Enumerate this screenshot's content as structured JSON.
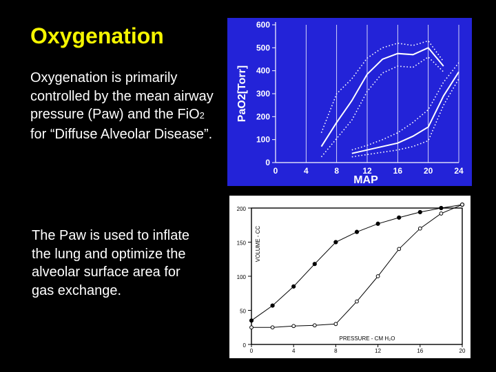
{
  "slide": {
    "title": "Oxygenation",
    "para1_pre": "Oxygenation is primarily controlled by the mean airway pressure (Paw) and the FiO",
    "para1_sub": "2",
    "para1_post": " for “Diffuse Alveolar Disease”.",
    "para2": "The Paw is used to inflate the lung and optimize the alveolar surface area for gas exchange."
  },
  "colors": {
    "title": "#f5f500",
    "chart1_bg": "#2323d8",
    "chart1_fg": "#ffffff",
    "chart2_bg": "#ffffff",
    "chart2_fg": "#000000"
  },
  "chart_data": [
    {
      "type": "line",
      "xlabel": "MAP",
      "ylabel": "PaO2[Torr]",
      "xlim": [
        0,
        24
      ],
      "ylim": [
        0,
        600
      ],
      "xticks": [
        0,
        4,
        8,
        12,
        16,
        20,
        24
      ],
      "yticks": [
        0,
        100,
        200,
        300,
        400,
        500,
        600
      ],
      "grid": "vertical",
      "series": [
        {
          "style": "solid",
          "x": [
            6,
            8,
            10,
            12,
            14,
            16,
            18,
            20,
            22
          ],
          "y": [
            70,
            175,
            270,
            385,
            450,
            475,
            470,
            500,
            420
          ]
        },
        {
          "style": "dotted",
          "x": [
            6,
            8,
            10,
            12,
            14,
            16,
            18,
            20,
            22
          ],
          "y": [
            130,
            300,
            365,
            455,
            500,
            520,
            510,
            530,
            440
          ]
        },
        {
          "style": "dotted",
          "x": [
            6,
            8,
            10,
            12,
            14,
            16,
            18,
            20,
            22
          ],
          "y": [
            25,
            105,
            185,
            310,
            390,
            420,
            415,
            460,
            395
          ]
        },
        {
          "style": "solid",
          "x": [
            10,
            12,
            14,
            16,
            18,
            20,
            22,
            24
          ],
          "y": [
            40,
            55,
            70,
            85,
            115,
            155,
            290,
            395
          ]
        },
        {
          "style": "dotted",
          "x": [
            10,
            12,
            14,
            16,
            18,
            20,
            22,
            24
          ],
          "y": [
            55,
            75,
            100,
            130,
            175,
            230,
            350,
            435
          ]
        },
        {
          "style": "dotted",
          "x": [
            10,
            12,
            14,
            16,
            18,
            20,
            22,
            24
          ],
          "y": [
            25,
            35,
            45,
            55,
            70,
            95,
            250,
            365
          ]
        }
      ]
    },
    {
      "type": "line",
      "xlabel": "PRESSURE - CM H₂O",
      "ylabel": "VOLUME - CC",
      "xlim": [
        0,
        20
      ],
      "ylim": [
        0,
        200
      ],
      "xticks": [
        0,
        4,
        8,
        12,
        16,
        20
      ],
      "yticks": [
        0,
        50,
        100,
        150,
        200
      ],
      "series": [
        {
          "marker": "filled",
          "x": [
            0,
            2,
            4,
            6,
            8,
            10,
            12,
            14,
            16,
            18,
            20
          ],
          "y": [
            35,
            57,
            85,
            118,
            150,
            165,
            177,
            186,
            194,
            200,
            205
          ]
        },
        {
          "marker": "open",
          "x": [
            0,
            2,
            4,
            6,
            8,
            10,
            12,
            14,
            16,
            18,
            20
          ],
          "y": [
            25,
            25,
            27,
            28,
            30,
            63,
            100,
            140,
            170,
            192,
            205
          ]
        }
      ]
    }
  ]
}
